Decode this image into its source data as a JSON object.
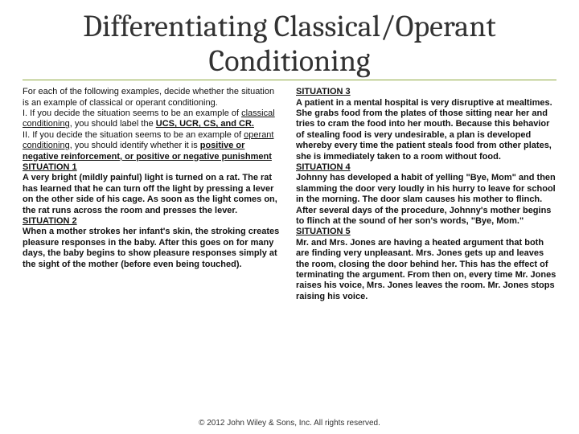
{
  "title": "Differentiating Classical/Operant Conditioning",
  "left": {
    "intro1": "For each of the following examples, decide whether the situation is an example of classical or operant conditioning.",
    "intro2a": "I. If you decide the situation seems to be an example of ",
    "intro2b": "classical conditioning",
    "intro2c": ", you should label the ",
    "intro2d": "UCS, UCR, CS, and CR.",
    "intro3a": "II. If you decide the situation seems to be an example of ",
    "intro3b": "operant conditioning",
    "intro3c": ", you should identify whether it is ",
    "intro3d": "positive or negative reinforcement, or positive or negative punishment",
    "s1h": "SITUATION 1",
    "s1": "A very bright (mildly painful) light is turned on a rat. The rat has learned that he can turn off the light by pressing a lever on the other side of his cage. As soon as the light comes on, the rat runs across the room and presses the lever.",
    "s2h": "SITUATION 2",
    "s2": "When a mother strokes her infant's skin, the stroking creates pleasure responses in the baby. After this goes on for many days, the baby begins to show pleasure responses simply at the sight of the mother (before even being touched)."
  },
  "right": {
    "s3h": "SITUATION 3",
    "s3": "A patient in a mental hospital is very disruptive at mealtimes. She grabs food from the plates of those sitting near her and tries to cram the food into her mouth. Because this behavior of stealing food is very undesirable, a plan is developed whereby every time the patient steals food from other plates, she is immediately taken to a room without food.",
    "s4h": "SITUATION 4",
    "s4": "Johnny has developed a habit of yelling \"Bye, Mom\" and then slamming the door very loudly in his hurry to leave for school in the morning. The door slam causes his mother to flinch. After several days of the procedure, Johnny's mother begins to flinch at the sound of her son's words, \"Bye, Mom.\"",
    "s5h": "SITUATION 5",
    "s5": "Mr. and Mrs. Jones are having a heated argument that both are finding very unpleasant. Mrs. Jones gets up and leaves the room, closing the door behind her. This has the effect of terminating the argument. From then on, every time Mr. Jones raises his voice, Mrs. Jones leaves the room. Mr. Jones stops raising his voice."
  },
  "copyright": "© 2012 John Wiley & Sons, Inc. All rights reserved.",
  "colors": {
    "title_underline": "#8fa83f",
    "text": "#111111",
    "background": "#ffffff"
  },
  "fontsizes": {
    "title": 38,
    "body": 11,
    "copyright": 10
  }
}
